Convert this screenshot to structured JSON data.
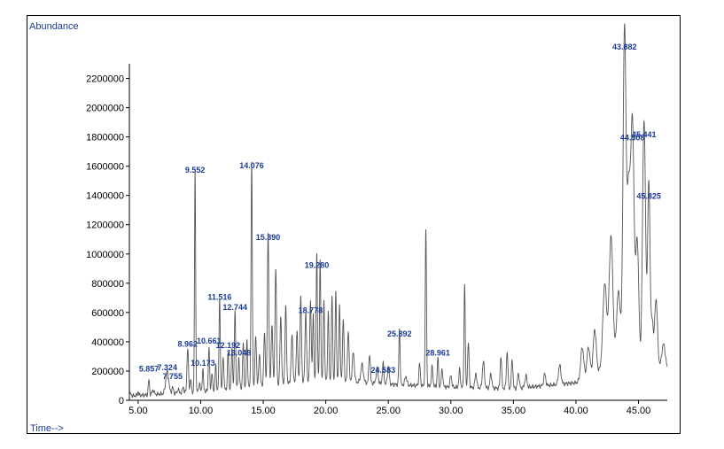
{
  "chart_data": {
    "type": "line",
    "ylabel": "Abundance",
    "xlabel": "Time-->",
    "xlim": [
      4.3,
      47.3
    ],
    "ylim": [
      0,
      2300000
    ],
    "xticks": [
      5.0,
      10.0,
      15.0,
      20.0,
      25.0,
      30.0,
      35.0,
      40.0,
      45.0
    ],
    "xtick_labels": [
      "5.00",
      "10.00",
      "15.00",
      "20.00",
      "25.00",
      "30.00",
      "35.00",
      "40.00",
      "45.00"
    ],
    "yticks": [
      0,
      200000,
      400000,
      600000,
      800000,
      1000000,
      1200000,
      1400000,
      1600000,
      1800000,
      2000000,
      2200000
    ],
    "ytick_labels": [
      "0",
      "200000",
      "400000",
      "600000",
      "800000",
      "1000000",
      "1200000",
      "1400000",
      "1600000",
      "1800000",
      "2000000",
      "2200000"
    ],
    "line_color": "#555555",
    "label_color": "#1a3a9a",
    "peak_labels": [
      {
        "time": 5.857,
        "label": "5.857",
        "value": 160000
      },
      {
        "time": 7.324,
        "label": "7.324",
        "value": 170000
      },
      {
        "time": 7.755,
        "label": "7.755",
        "value": 110000
      },
      {
        "time": 8.962,
        "label": "8.962",
        "value": 330000
      },
      {
        "time": 9.552,
        "label": "9.552",
        "value": 1520000
      },
      {
        "time": 10.173,
        "label": "10.173",
        "value": 200000
      },
      {
        "time": 10.661,
        "label": "10.661",
        "value": 350000
      },
      {
        "time": 11.516,
        "label": "11.516",
        "value": 650000
      },
      {
        "time": 12.192,
        "label": "12.192",
        "value": 320000
      },
      {
        "time": 12.744,
        "label": "12.744",
        "value": 580000
      },
      {
        "time": 13.048,
        "label": "13.048",
        "value": 270000
      },
      {
        "time": 14.076,
        "label": "14.076",
        "value": 1550000
      },
      {
        "time": 15.39,
        "label": "15.390",
        "value": 1060000
      },
      {
        "time": 18.778,
        "label": "18.778",
        "value": 560000
      },
      {
        "time": 19.28,
        "label": "19.280",
        "value": 870000
      },
      {
        "time": 24.583,
        "label": "24.583",
        "value": 150000
      },
      {
        "time": 25.892,
        "label": "25.892",
        "value": 400000
      },
      {
        "time": 28.961,
        "label": "28.961",
        "value": 270000
      },
      {
        "time": 43.882,
        "label": "43.882",
        "value": 2360000
      },
      {
        "time": 44.508,
        "label": "44.508",
        "value": 1740000
      },
      {
        "time": 45.441,
        "label": "45.441",
        "value": 1760000
      },
      {
        "time": 45.825,
        "label": "45.825",
        "value": 1340000
      }
    ],
    "peaks": [
      [
        4.4,
        15000,
        0.05
      ],
      [
        5.0,
        25000,
        0.04
      ],
      [
        5.857,
        100000,
        0.05
      ],
      [
        6.2,
        30000,
        0.08
      ],
      [
        7.324,
        150000,
        0.12
      ],
      [
        7.755,
        40000,
        0.06
      ],
      [
        8.2,
        30000,
        0.05
      ],
      [
        8.6,
        40000,
        0.05
      ],
      [
        8.962,
        300000,
        0.06
      ],
      [
        9.2,
        90000,
        0.05
      ],
      [
        9.552,
        1500000,
        0.045
      ],
      [
        9.9,
        60000,
        0.05
      ],
      [
        10.173,
        150000,
        0.05
      ],
      [
        10.661,
        300000,
        0.05
      ],
      [
        10.9,
        120000,
        0.05
      ],
      [
        11.2,
        170000,
        0.05
      ],
      [
        11.516,
        620000,
        0.05
      ],
      [
        11.8,
        230000,
        0.05
      ],
      [
        12.192,
        250000,
        0.05
      ],
      [
        12.5,
        280000,
        0.05
      ],
      [
        12.744,
        540000,
        0.05
      ],
      [
        13.048,
        210000,
        0.05
      ],
      [
        13.4,
        300000,
        0.05
      ],
      [
        13.7,
        320000,
        0.05
      ],
      [
        14.076,
        1530000,
        0.05
      ],
      [
        14.4,
        340000,
        0.06
      ],
      [
        14.7,
        220000,
        0.06
      ],
      [
        15.1,
        350000,
        0.06
      ],
      [
        15.39,
        1030000,
        0.06
      ],
      [
        15.7,
        420000,
        0.06
      ],
      [
        16.0,
        790000,
        0.06
      ],
      [
        16.4,
        460000,
        0.06
      ],
      [
        16.8,
        520000,
        0.06
      ],
      [
        17.3,
        320000,
        0.07
      ],
      [
        17.7,
        350000,
        0.06
      ],
      [
        18.0,
        580000,
        0.06
      ],
      [
        18.4,
        480000,
        0.06
      ],
      [
        18.778,
        540000,
        0.06
      ],
      [
        19.0,
        450000,
        0.05
      ],
      [
        19.28,
        860000,
        0.05
      ],
      [
        19.55,
        820000,
        0.05
      ],
      [
        19.85,
        560000,
        0.05
      ],
      [
        20.2,
        460000,
        0.05
      ],
      [
        20.5,
        580000,
        0.05
      ],
      [
        20.8,
        620000,
        0.05
      ],
      [
        21.1,
        520000,
        0.05
      ],
      [
        21.4,
        420000,
        0.06
      ],
      [
        21.8,
        350000,
        0.06
      ],
      [
        22.2,
        200000,
        0.08
      ],
      [
        22.9,
        120000,
        0.1
      ],
      [
        23.5,
        200000,
        0.06
      ],
      [
        24.1,
        100000,
        0.08
      ],
      [
        24.583,
        140000,
        0.06
      ],
      [
        25.0,
        120000,
        0.07
      ],
      [
        25.892,
        380000,
        0.05
      ],
      [
        26.4,
        60000,
        0.08
      ],
      [
        27.5,
        150000,
        0.06
      ],
      [
        28.0,
        1060000,
        0.05
      ],
      [
        28.5,
        130000,
        0.06
      ],
      [
        28.961,
        200000,
        0.05
      ],
      [
        29.3,
        120000,
        0.06
      ],
      [
        30.0,
        80000,
        0.07
      ],
      [
        30.7,
        120000,
        0.06
      ],
      [
        31.1,
        700000,
        0.05
      ],
      [
        31.4,
        300000,
        0.06
      ],
      [
        32.0,
        100000,
        0.07
      ],
      [
        32.6,
        180000,
        0.08
      ],
      [
        33.2,
        100000,
        0.07
      ],
      [
        34.0,
        220000,
        0.06
      ],
      [
        34.5,
        250000,
        0.06
      ],
      [
        34.9,
        200000,
        0.06
      ],
      [
        35.4,
        100000,
        0.07
      ],
      [
        36.0,
        80000,
        0.08
      ],
      [
        37.5,
        80000,
        0.08
      ],
      [
        38.7,
        130000,
        0.1
      ],
      [
        40.5,
        220000,
        0.12
      ],
      [
        41.0,
        200000,
        0.12
      ],
      [
        41.5,
        300000,
        0.12
      ],
      [
        42.3,
        580000,
        0.15
      ],
      [
        42.8,
        880000,
        0.15
      ],
      [
        43.4,
        500000,
        0.15
      ],
      [
        43.882,
        2300000,
        0.12
      ],
      [
        44.2,
        1100000,
        0.12
      ],
      [
        44.508,
        1680000,
        0.14
      ],
      [
        44.9,
        850000,
        0.12
      ],
      [
        45.441,
        1700000,
        0.12
      ],
      [
        45.825,
        1280000,
        0.1
      ],
      [
        46.1,
        300000,
        0.08
      ],
      [
        46.4,
        480000,
        0.12
      ],
      [
        47.0,
        180000,
        0.15
      ]
    ],
    "baseline": [
      [
        4.3,
        30000
      ],
      [
        10.0,
        60000
      ],
      [
        15.0,
        100000
      ],
      [
        20.0,
        140000
      ],
      [
        25.0,
        110000
      ],
      [
        30.0,
        90000
      ],
      [
        35.0,
        80000
      ],
      [
        40.0,
        120000
      ],
      [
        43.0,
        250000
      ],
      [
        47.3,
        200000
      ]
    ]
  }
}
